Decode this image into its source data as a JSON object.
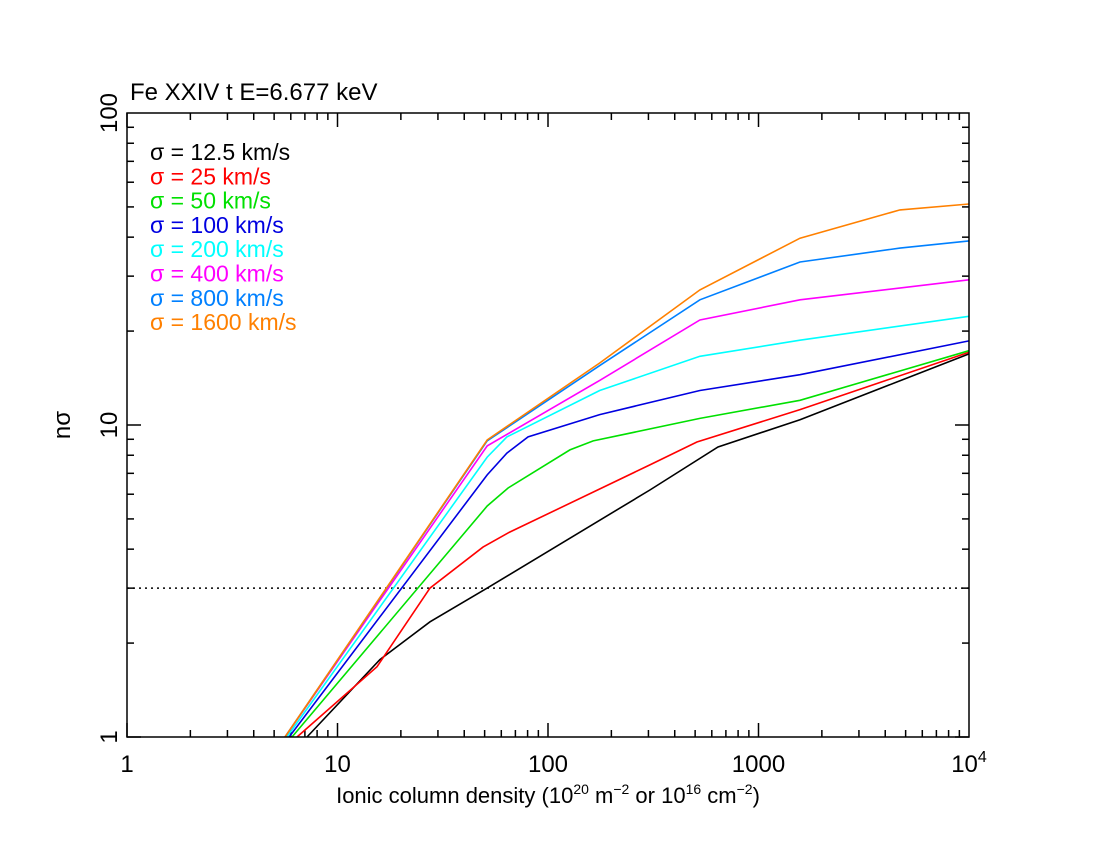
{
  "chart_data": {
    "type": "line",
    "title": "Fe XXIV t E=6.677 keV",
    "xlabel": {
      "main": "Ionic column density (10",
      "sup1": "20",
      "mid1": " m",
      "sup2": "−2",
      "mid2": " or 10",
      "sup3": "16",
      "mid3": " cm",
      "sup4": "−2",
      "end": ")"
    },
    "ylabel": "nσ",
    "xscale": "log",
    "yscale": "log",
    "xlim": [
      1,
      10000
    ],
    "ylim": [
      1,
      100
    ],
    "xticks": [
      {
        "v": 1,
        "label": "1"
      },
      {
        "v": 10,
        "label": "10"
      },
      {
        "v": 100,
        "label": "100"
      },
      {
        "v": 1000,
        "label": "1000"
      },
      {
        "v": 10000,
        "label": "10",
        "sup": "4"
      }
    ],
    "yticks": [
      {
        "v": 1,
        "label": "1"
      },
      {
        "v": 10,
        "label": "10"
      },
      {
        "v": 100,
        "label": "100"
      }
    ],
    "grid": false,
    "legend_position": "top-left",
    "reference_line": {
      "y": 3,
      "style": "dotted",
      "color": "#000000"
    },
    "series": [
      {
        "name": "σ = 12.5 km/s",
        "color": "#000000",
        "x": [
          7.16,
          15.9,
          27.5,
          51.4,
          305,
          642,
          1575,
          10000
        ],
        "y": [
          1,
          1.77,
          2.34,
          3.0,
          6.19,
          8.5,
          10.4,
          16.9
        ]
      },
      {
        "name": "σ = 25 km/s",
        "color": "#ff0000",
        "x": [
          6.42,
          15.4,
          27.5,
          49.1,
          64.6,
          305,
          510,
          1575,
          10000
        ],
        "y": [
          1,
          1.68,
          3.0,
          4.06,
          4.51,
          7.45,
          8.82,
          11.2,
          17.1
        ]
      },
      {
        "name": "σ = 50 km/s",
        "color": "#00e000",
        "x": [
          6.08,
          51.4,
          64.6,
          127,
          164,
          527,
          1575,
          10000
        ],
        "y": [
          1,
          5.5,
          6.28,
          8.32,
          8.89,
          10.5,
          12.0,
          17.3
        ]
      },
      {
        "name": "σ = 100 km/s",
        "color": "#0000e0",
        "x": [
          5.89,
          51.4,
          63.8,
          80.4,
          176,
          527,
          1575,
          10000
        ],
        "y": [
          1,
          6.92,
          8.13,
          9.16,
          10.8,
          12.9,
          14.5,
          18.6
        ]
      },
      {
        "name": "σ = 200 km/s",
        "color": "#00ffff",
        "x": [
          5.75,
          51.4,
          63.8,
          176,
          527,
          1575,
          10000
        ],
        "y": [
          1,
          7.89,
          9.16,
          12.9,
          16.6,
          18.7,
          22.3
        ]
      },
      {
        "name": "σ = 400 km/s",
        "color": "#ff00ff",
        "x": [
          5.63,
          51.4,
          176,
          527,
          1575,
          10000
        ],
        "y": [
          1,
          8.57,
          13.9,
          21.7,
          25.2,
          29.2
        ]
      },
      {
        "name": "σ = 800 km/s",
        "color": "#0080ff",
        "x": [
          5.63,
          51.4,
          176,
          527,
          1575,
          4700,
          10000
        ],
        "y": [
          1,
          8.9,
          15.5,
          25.2,
          33.3,
          36.9,
          38.9
        ]
      },
      {
        "name": "σ = 1600 km/s",
        "color": "#ff8000",
        "x": [
          5.63,
          51.4,
          176,
          527,
          1575,
          4700,
          10000
        ],
        "y": [
          1,
          8.96,
          15.8,
          27.1,
          39.7,
          48.9,
          51.1
        ]
      }
    ]
  }
}
